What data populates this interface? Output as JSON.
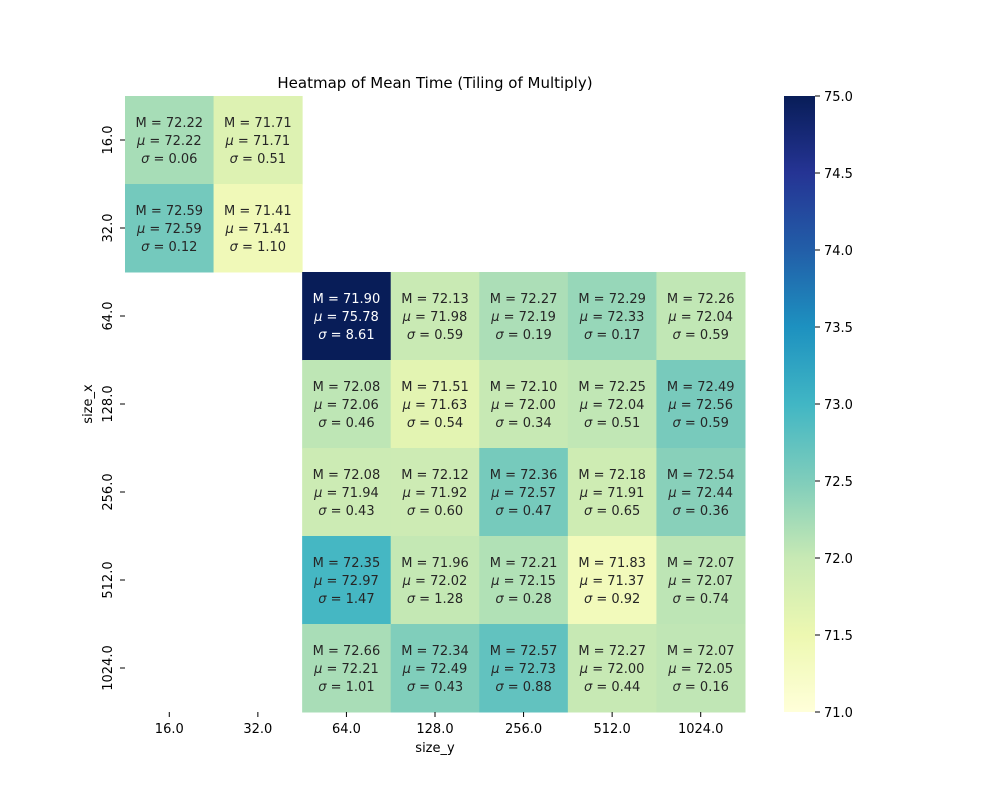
{
  "chart_data": {
    "type": "heatmap",
    "title": "Heatmap of Mean Time (Tiling of Multiply)",
    "xlabel": "size_y",
    "ylabel": "size_x",
    "x_categories": [
      "16.0",
      "32.0",
      "64.0",
      "128.0",
      "256.0",
      "512.0",
      "1024.0"
    ],
    "y_categories": [
      "16.0",
      "32.0",
      "64.0",
      "128.0",
      "256.0",
      "512.0",
      "1024.0"
    ],
    "colorbar": {
      "min": 71.0,
      "max": 75.0,
      "ticks": [
        "71.0",
        "71.5",
        "72.0",
        "72.5",
        "73.0",
        "73.5",
        "74.0",
        "74.5",
        "75.0"
      ],
      "colormap": "YlGnBu"
    },
    "cell_value": "mu",
    "cells": [
      [
        {
          "M": "72.22",
          "mu": "72.22",
          "sigma": "0.06"
        },
        {
          "M": "71.71",
          "mu": "71.71",
          "sigma": "0.51"
        },
        null,
        null,
        null,
        null,
        null
      ],
      [
        {
          "M": "72.59",
          "mu": "72.59",
          "sigma": "0.12"
        },
        {
          "M": "71.41",
          "mu": "71.41",
          "sigma": "1.10"
        },
        null,
        null,
        null,
        null,
        null
      ],
      [
        null,
        null,
        {
          "M": "71.90",
          "mu": "75.78",
          "sigma": "8.61"
        },
        {
          "M": "72.13",
          "mu": "71.98",
          "sigma": "0.59"
        },
        {
          "M": "72.27",
          "mu": "72.19",
          "sigma": "0.19"
        },
        {
          "M": "72.29",
          "mu": "72.33",
          "sigma": "0.17"
        },
        {
          "M": "72.26",
          "mu": "72.04",
          "sigma": "0.59"
        }
      ],
      [
        null,
        null,
        {
          "M": "72.08",
          "mu": "72.06",
          "sigma": "0.46"
        },
        {
          "M": "71.51",
          "mu": "71.63",
          "sigma": "0.54"
        },
        {
          "M": "72.10",
          "mu": "72.00",
          "sigma": "0.34"
        },
        {
          "M": "72.25",
          "mu": "72.04",
          "sigma": "0.51"
        },
        {
          "M": "72.49",
          "mu": "72.56",
          "sigma": "0.59"
        }
      ],
      [
        null,
        null,
        {
          "M": "72.08",
          "mu": "71.94",
          "sigma": "0.43"
        },
        {
          "M": "72.12",
          "mu": "71.92",
          "sigma": "0.60"
        },
        {
          "M": "72.36",
          "mu": "72.57",
          "sigma": "0.47"
        },
        {
          "M": "72.18",
          "mu": "71.91",
          "sigma": "0.65"
        },
        {
          "M": "72.54",
          "mu": "72.44",
          "sigma": "0.36"
        }
      ],
      [
        null,
        null,
        {
          "M": "72.35",
          "mu": "72.97",
          "sigma": "1.47"
        },
        {
          "M": "71.96",
          "mu": "72.02",
          "sigma": "1.28"
        },
        {
          "M": "72.21",
          "mu": "72.15",
          "sigma": "0.28"
        },
        {
          "M": "71.83",
          "mu": "71.37",
          "sigma": "0.92"
        },
        {
          "M": "72.07",
          "mu": "72.07",
          "sigma": "0.74"
        }
      ],
      [
        null,
        null,
        {
          "M": "72.66",
          "mu": "72.21",
          "sigma": "1.01"
        },
        {
          "M": "72.34",
          "mu": "72.49",
          "sigma": "0.43"
        },
        {
          "M": "72.57",
          "mu": "72.73",
          "sigma": "0.88"
        },
        {
          "M": "72.27",
          "mu": "72.00",
          "sigma": "0.44"
        },
        {
          "M": "72.07",
          "mu": "72.05",
          "sigma": "0.16"
        }
      ]
    ]
  }
}
